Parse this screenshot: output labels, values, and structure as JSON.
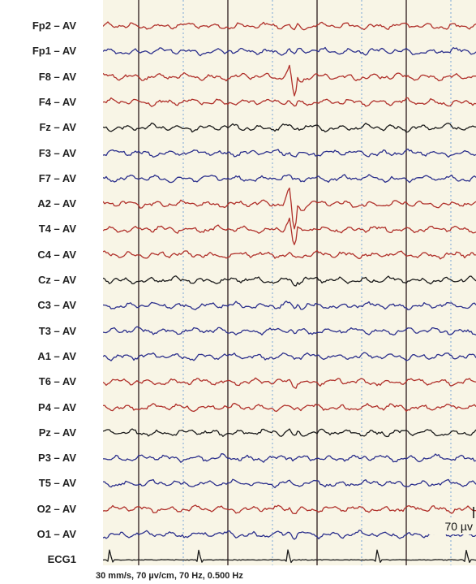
{
  "channels": [
    {
      "label": "Fp2 – AV",
      "color": "#b0302a",
      "spike": 0.35
    },
    {
      "label": "Fp1 – AV",
      "color": "#2b2f8c",
      "spike": 0.2
    },
    {
      "label": "F8 – AV",
      "color": "#b0302a",
      "spike": 1.9
    },
    {
      "label": "F4 – AV",
      "color": "#b0302a",
      "spike": 0.3
    },
    {
      "label": "Fz – AV",
      "color": "#1a1a1a",
      "spike": 0.2
    },
    {
      "label": "F3 – AV",
      "color": "#2b2f8c",
      "spike": 0.2
    },
    {
      "label": "F7 – AV",
      "color": "#2b2f8c",
      "spike": 0.2
    },
    {
      "label": "A2 – AV",
      "color": "#b0302a",
      "spike": 2.4
    },
    {
      "label": "T4 – AV",
      "color": "#b0302a",
      "spike": 1.6
    },
    {
      "label": "C4 – AV",
      "color": "#b0302a",
      "spike": 0.35
    },
    {
      "label": "Cz – AV",
      "color": "#1a1a1a",
      "spike": 0.4
    },
    {
      "label": "C3 – AV",
      "color": "#2b2f8c",
      "spike": 0.4
    },
    {
      "label": "T3 – AV",
      "color": "#2b2f8c",
      "spike": 0.2
    },
    {
      "label": "A1 – AV",
      "color": "#2b2f8c",
      "spike": 0.25
    },
    {
      "label": "T6 – AV",
      "color": "#b0302a",
      "spike": 0.3
    },
    {
      "label": "P4 – AV",
      "color": "#b0302a",
      "spike": 0.3
    },
    {
      "label": "Pz – AV",
      "color": "#1a1a1a",
      "spike": 0.35
    },
    {
      "label": "P3 – AV",
      "color": "#2b2f8c",
      "spike": 0.35
    },
    {
      "label": "T5 – AV",
      "color": "#2b2f8c",
      "spike": 0.3
    },
    {
      "label": "O2 – AV",
      "color": "#b0302a",
      "spike": 0.3
    },
    {
      "label": "O1 – AV",
      "color": "#2b2f8c",
      "spike": 0.3
    },
    {
      "label": "ECG1",
      "color": "#1a1a1a",
      "spike": 0
    }
  ],
  "scale_label": "70 µv",
  "caption": "30 mm/s, 70 µv/cm, 70 Hz, 0.500 Hz",
  "colors": {
    "background": "#f8f5e6",
    "second_marker": "#3a2a2a",
    "half_second_marker": "#7aa6d6"
  }
}
